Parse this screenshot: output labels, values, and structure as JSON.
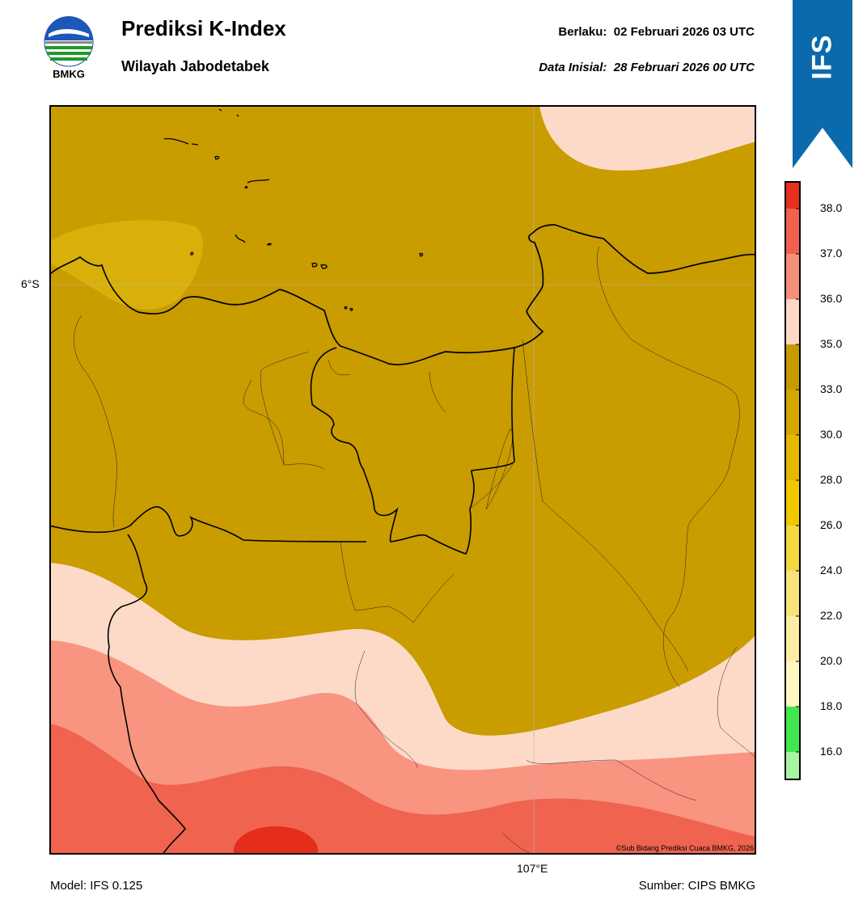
{
  "logo_text": "BMKG",
  "title": "Prediksi K-Index",
  "subtitle": "Wilayah Jabodetabek",
  "valid": {
    "label": "Berlaku:",
    "value": "02 Februari 2026 03 UTC"
  },
  "initial": {
    "label": "Data Inisial:",
    "value": "28 Februari 2026 00 UTC"
  },
  "ribbon_text": "IFS",
  "map": {
    "lat_label": "6°S",
    "lon_label": "107°E",
    "credit": "©Sub Bidang Prediksi Cuaca BMKG, 2026"
  },
  "colorbar": {
    "ticks": [
      "38.0",
      "37.0",
      "36.0",
      "35.0",
      "33.0",
      "30.0",
      "28.0",
      "26.0",
      "24.0",
      "22.0",
      "20.0",
      "18.0",
      "16.0"
    ],
    "band_colors": [
      "#e83020",
      "#f0604e",
      "#f58f78",
      "#fdd8c4",
      "#c79a00",
      "#d3a600",
      "#e6b800",
      "#f0c800",
      "#f5d840",
      "#f8e27a",
      "#fbeea2",
      "#fff6c0",
      "#40e850",
      "#a6f5a0",
      "#ffffff"
    ]
  },
  "footer": {
    "model": "Model: IFS 0.125",
    "source": "Sumber: CIPS BMKG"
  },
  "colors": {
    "ribbon": "#0b6aac",
    "kindex_33_35": "#c99c00",
    "kindex_30_33": "#d9b00a",
    "kindex_35_36": "#fddac8",
    "kindex_36_37": "#f99480",
    "kindex_37_38": "#f0634f",
    "kindex_38plus": "#e52d1c"
  }
}
